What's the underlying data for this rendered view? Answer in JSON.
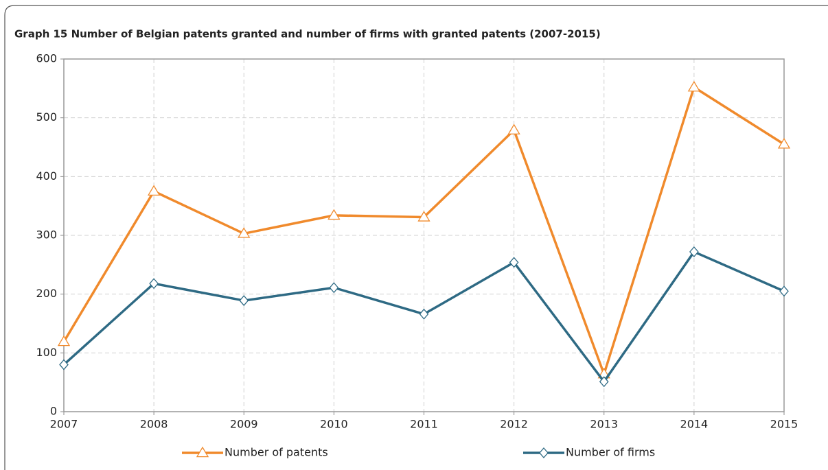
{
  "chart_data": {
    "type": "line",
    "title": "Graph 15   Number of Belgian patents granted and number of firms with granted patents (2007-2015)",
    "x": [
      2007,
      2008,
      2009,
      2010,
      2011,
      2012,
      2013,
      2014,
      2015
    ],
    "xlim": [
      2007,
      2015
    ],
    "xticks": [
      2007,
      2008,
      2009,
      2010,
      2011,
      2012,
      2013,
      2014,
      2015
    ],
    "ylim": [
      0,
      600
    ],
    "yticks": [
      0,
      100,
      200,
      300,
      400,
      500,
      600
    ],
    "grid": true,
    "legend": "bottom",
    "series": [
      {
        "name": "Number of patents",
        "color": "#f08a2c",
        "marker": "triangle",
        "values": [
          119,
          375,
          303,
          334,
          331,
          479,
          64,
          552,
          455
        ]
      },
      {
        "name": "Number of firms",
        "color": "#2e6a84",
        "marker": "diamond",
        "values": [
          80,
          218,
          189,
          211,
          166,
          254,
          51,
          272,
          205
        ]
      }
    ]
  }
}
